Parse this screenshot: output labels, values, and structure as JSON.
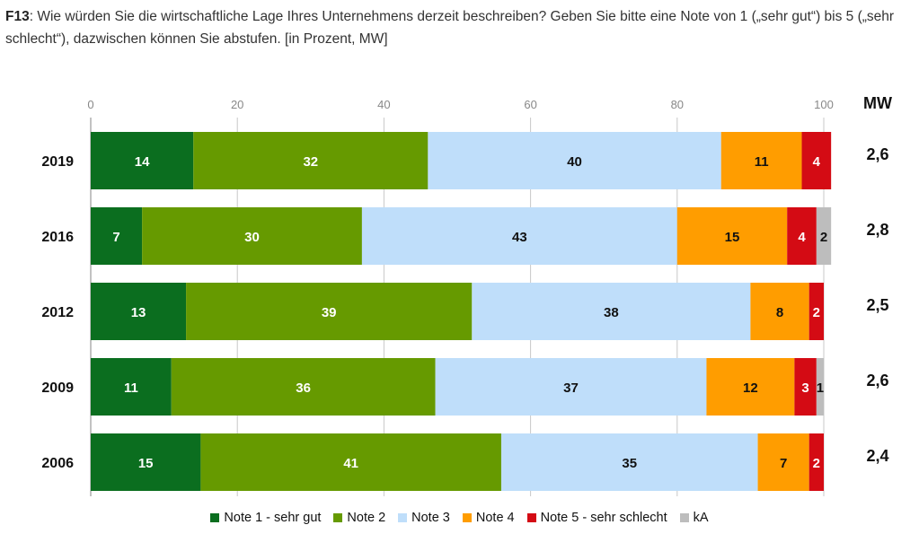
{
  "question": {
    "prefix": "F13",
    "text": ": Wie würden Sie die wirtschaftliche Lage Ihres Unternehmens derzeit beschreiben? Geben Sie bitte eine Note von 1 („sehr gut“) bis 5 („sehr schlecht“), dazwischen können Sie abstufen. [in Prozent, MW]"
  },
  "chart_data": {
    "type": "bar",
    "orientation": "horizontal",
    "stacked": true,
    "title": "",
    "xlabel": "",
    "ylabel": "",
    "xlim": [
      0,
      100
    ],
    "x_ticks": [
      0,
      20,
      40,
      60,
      80,
      100
    ],
    "grid": true,
    "mw_header": "MW",
    "categories": [
      "2019",
      "2016",
      "2012",
      "2009",
      "2006"
    ],
    "series": [
      {
        "name": "Note 1 - sehr gut",
        "color": "#0b6e1f",
        "label_color": "#ffffff",
        "values": [
          14,
          7,
          13,
          11,
          15
        ]
      },
      {
        "name": "Note 2",
        "color": "#669a00",
        "label_color": "#ffffff",
        "values": [
          32,
          30,
          39,
          36,
          41
        ]
      },
      {
        "name": "Note 3",
        "color": "#bfdefa",
        "label_color": "#111111",
        "values": [
          40,
          43,
          38,
          37,
          35
        ]
      },
      {
        "name": "Note 4",
        "color": "#ff9d00",
        "label_color": "#111111",
        "values": [
          11,
          15,
          8,
          12,
          7
        ]
      },
      {
        "name": "Note 5 - sehr schlecht",
        "color": "#d40b14",
        "label_color": "#ffffff",
        "values": [
          4,
          4,
          2,
          3,
          2
        ]
      },
      {
        "name": "kA",
        "color": "#bdbdbd",
        "label_color": "#111111",
        "values": [
          null,
          2,
          null,
          1,
          null
        ]
      }
    ],
    "mw_values": [
      "2,6",
      "2,8",
      "2,5",
      "2,6",
      "2,4"
    ],
    "legend_position": "bottom"
  }
}
